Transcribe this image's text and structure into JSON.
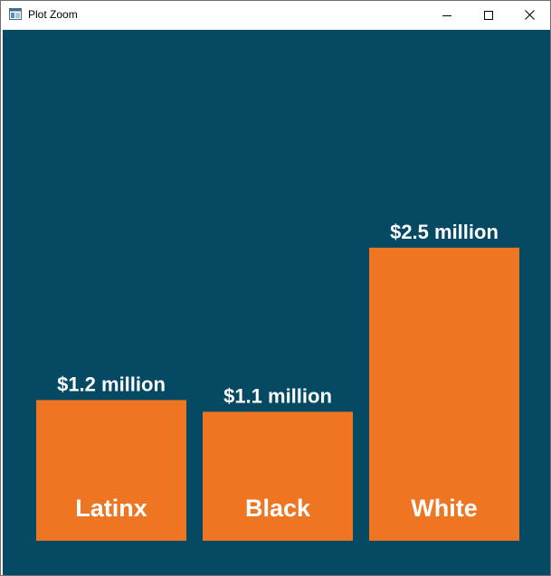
{
  "window": {
    "title": "Plot Zoom",
    "icon": "plot-zoom-app-icon",
    "controls": [
      "minimize-icon",
      "maximize-icon",
      "close-icon"
    ]
  },
  "colors": {
    "background": "#054963",
    "bar": "#ee7623",
    "text": "#ffffff"
  },
  "chart_data": {
    "type": "bar",
    "categories": [
      "Latinx",
      "Black",
      "White"
    ],
    "values": [
      1.2,
      1.1,
      2.5
    ],
    "value_labels": [
      "$1.2 million",
      "$1.1 million",
      "$2.5 million"
    ],
    "title": "",
    "xlabel": "",
    "ylabel": "",
    "ylim": [
      0,
      4.15
    ],
    "grid": false,
    "legend": "none",
    "category_labels_position": "inside-bar-bottom"
  }
}
